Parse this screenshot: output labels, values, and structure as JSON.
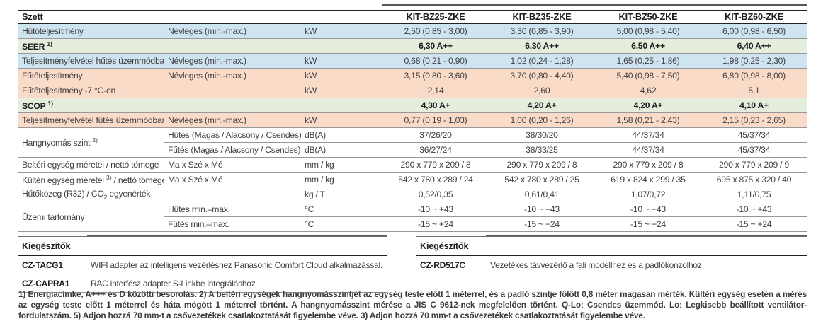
{
  "colors": {
    "row_blue": "#cfe4f1",
    "row_green": "#e5eedd",
    "row_peach": "#fadbc8",
    "separator_line": "#96989b",
    "dark_line": "#242021",
    "accent_bar": "#54565b"
  },
  "spec_table": {
    "corner_label": "Szett",
    "models": [
      "KIT-BZ25-ZKE",
      "KIT-BZ35-ZKE",
      "KIT-BZ50-ZKE",
      "KIT-BZ60-ZKE"
    ],
    "rows": [
      {
        "layout": "normal",
        "bg": "blue",
        "bold": false,
        "label_parts": [
          {
            "text": "Hűtőteljesítmény"
          }
        ],
        "sub": "Névleges (min.-max.)",
        "unit": "kW",
        "values": [
          "2,50 (0,85 - 3,00)",
          "3,30 (0,85 - 3,90)",
          "5,00 (0,98 - 5,40)",
          "6,00 (0,98 - 6,50)"
        ]
      },
      {
        "layout": "span3",
        "bg": "green",
        "bold": true,
        "label_parts": [
          {
            "text": "SEER "
          },
          {
            "sup": "1)"
          }
        ],
        "values": [
          "6,30 A++",
          "6,30 A++",
          "6,50 A++",
          "6,40 A++"
        ]
      },
      {
        "layout": "normal",
        "bg": "blue",
        "bold": false,
        "label_parts": [
          {
            "text": "Teljesítményfelvétel hűtés üzemmódban"
          }
        ],
        "sub": "Névleges (min.-max.)",
        "unit": "kW",
        "values": [
          "0,68 (0,21 - 0,90)",
          "1,02 (0,24 - 1,28)",
          "1,65 (0,25 - 1,86)",
          "1,98 (0,25 - 2,30)"
        ]
      },
      {
        "layout": "normal",
        "bg": "peach",
        "bold": false,
        "label_parts": [
          {
            "text": "Fűtőteljesítmény"
          }
        ],
        "sub": "Névleges (min.-max.)",
        "unit": "kW",
        "values": [
          "3,15 (0,80 - 3,60)",
          "3,70 (0,80 - 4,40)",
          "5,40 (0,98 - 7,50)",
          "6,80 (0,98 - 8,00)"
        ]
      },
      {
        "layout": "span2",
        "bg": "peach",
        "bold": false,
        "label_parts": [
          {
            "text": "Fűtőteljesítmény -7 °C-on"
          }
        ],
        "unit": "kW",
        "values": [
          "2,14",
          "2,60",
          "4,62",
          "5,1"
        ]
      },
      {
        "layout": "span3",
        "bg": "green",
        "bold": true,
        "label_parts": [
          {
            "text": "SCOP "
          },
          {
            "sup": "1)"
          }
        ],
        "values": [
          "4,30 A+",
          "4,20 A+",
          "4,20 A+",
          "4,10 A+"
        ]
      },
      {
        "layout": "normal",
        "bg": "peach",
        "bold": false,
        "label_parts": [
          {
            "text": "Teljesítményfelvétel fűtés üzemmódban"
          }
        ],
        "sub": "Névleges (min.-max.)",
        "unit": "kW",
        "values": [
          "0,77 (0,19 - 1,03)",
          "1,00 (0,20 - 1,26)",
          "1,58 (0,21 - 2,43)",
          "2,15 (0,23 - 2,65)"
        ]
      },
      {
        "layout": "groupstart",
        "bg": "white",
        "bold": false,
        "label_parts": [
          {
            "text": "Hangnyomás szint "
          },
          {
            "sup": "2)"
          }
        ],
        "sub": "Hűtés (Magas / Alacsony / Csendes)",
        "unit": "dB(A)",
        "values": [
          "37/26/20",
          "38/30/20",
          "44/37/34",
          "45/37/34"
        ]
      },
      {
        "layout": "groupend",
        "bg": "white",
        "bold": false,
        "sub": "Fűtés (Magas / Alacsony / Csendes)",
        "unit": "dB(A)",
        "values": [
          "36/27/24",
          "38/33/25",
          "44/37/34",
          "45/37/34"
        ]
      },
      {
        "layout": "normal",
        "bg": "white",
        "bold": false,
        "label_parts": [
          {
            "text": "Beltéri egység méretei / nettó tömege"
          }
        ],
        "sub": "Ma x Szé x Mé",
        "unit": "mm / kg",
        "values": [
          "290 x 779 x 209 / 8",
          "290 x 779 x 209 / 8",
          "290 x 779 x 209 / 8",
          "290 x 779 x 209 / 9"
        ]
      },
      {
        "layout": "normal",
        "bg": "white",
        "bold": false,
        "label_parts": [
          {
            "text": "Kültéri egység méretei "
          },
          {
            "sup": "3)"
          },
          {
            "text": " / nettó tömege"
          }
        ],
        "sub": "Ma x Szé x Mé",
        "unit": "mm / kg",
        "values": [
          "542 x 780 x 289 / 24",
          "542 x 780 x 289 / 25",
          "619 x 824 x 299 / 35",
          "695 x 875 x 320 / 40"
        ]
      },
      {
        "layout": "span2",
        "bg": "white",
        "bold": false,
        "label_parts": [
          {
            "text": "Hűtőközeg (R32) / CO"
          },
          {
            "subscript": "2"
          },
          {
            "text": " egyenérték"
          }
        ],
        "unit": "kg / T",
        "values": [
          "0,52/0,35",
          "0,61/0,41",
          "1,07/0,72",
          "1,11/0,75"
        ]
      },
      {
        "layout": "groupstart",
        "bg": "white",
        "bold": false,
        "label_parts": [
          {
            "text": "Üzemi tartomány"
          }
        ],
        "sub": "Hűtés min.–max.",
        "unit": "°C",
        "values": [
          "-10 ~ +43",
          "-10 ~ +43",
          "-10 ~ +43",
          "-10 ~ +43"
        ]
      },
      {
        "layout": "groupend",
        "bg": "white",
        "bold": false,
        "sub": "Fűtés min.–max.",
        "unit": "°C",
        "values": [
          "-15 ~ +24",
          "-15 ~ +24",
          "-15 ~ +24",
          "-15 ~ +24"
        ]
      }
    ]
  },
  "accessories_left": {
    "title": "Kiegészítők",
    "items": [
      {
        "code": "CZ-TACG1",
        "desc": "WIFI adapter az intelligens vezérléshez Panasonic Comfort Cloud alkalmazással."
      },
      {
        "code": "CZ-CAPRA1",
        "desc": "RAC interfész adapter S-Linkbe integráláshoz"
      }
    ]
  },
  "accessories_right": {
    "title": "Kiegészítők",
    "items": [
      {
        "code": "CZ-RD517C",
        "desc": "Vezetékes távvezérlő a fali modellhez és a padlókonzolhoz"
      }
    ]
  },
  "footnotes": {
    "text": "1) Energiacímke, A+++ és D közötti besorolás. 2) A beltéri egységek hangnyomásszintjét az egység teste előtt 1 méterrel, és a padló szintje fölött 0,8 méter magasan mérték. Kültéri egység esetén a mérés az egység teste előtt 1 méterrel és háta mögött 1 méterrel történt. A hangnyomásszint mérése a JIS C 9612-nek megfelelően történt. Q-Lo: Csendes üzemmód. Lo: Legkisebb beállított ventilátor-fordulatszám. 5) Adjon hozzá 70 mm-t a csővezetékek csatlakoztatását figyelembe véve. 3) Adjon hozzá 70 mm-t a csővezetékek csatlakoztatását figyelembe véve."
  }
}
